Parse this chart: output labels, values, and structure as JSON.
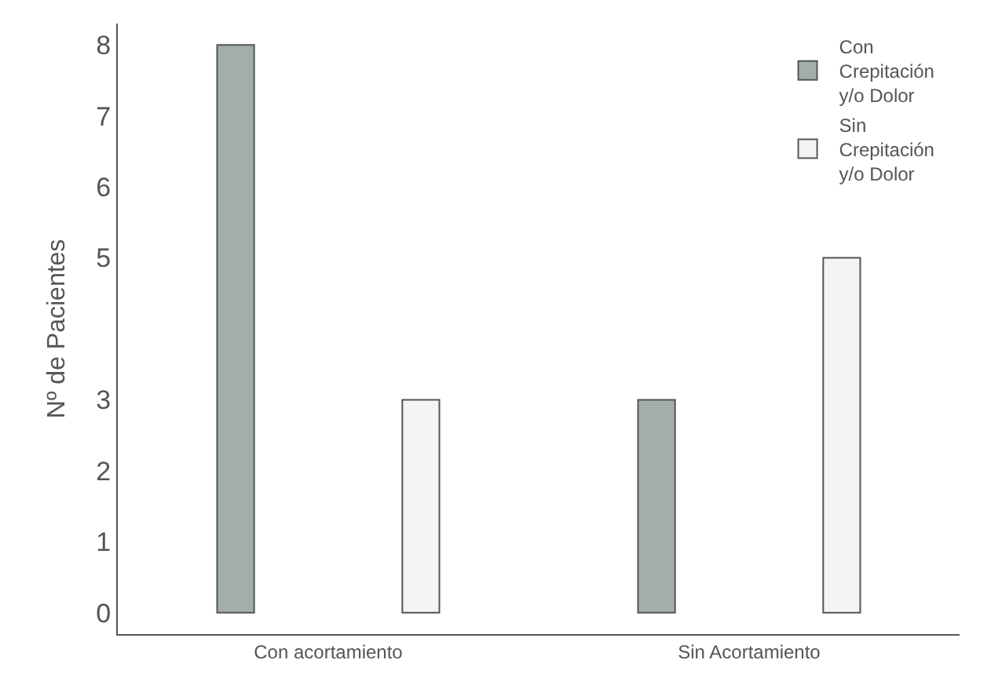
{
  "chart_data": {
    "type": "bar",
    "ylabel": "Nº de Pacientes",
    "categories": [
      "Con acortamiento",
      "Sin Acortamiento"
    ],
    "series": [
      {
        "name": "Con Crepitación y/o Dolor",
        "color": "#a3aea8",
        "values": [
          8,
          3
        ]
      },
      {
        "name": "Sin Crepitación y/o Dolor",
        "color": "#f4f5f3",
        "values": [
          3,
          5
        ]
      }
    ],
    "ylim": [
      -0.3,
      8.3
    ],
    "yticks": [
      0,
      1,
      2,
      3,
      5,
      6,
      7,
      8
    ],
    "grid": false,
    "legend": "top right"
  }
}
